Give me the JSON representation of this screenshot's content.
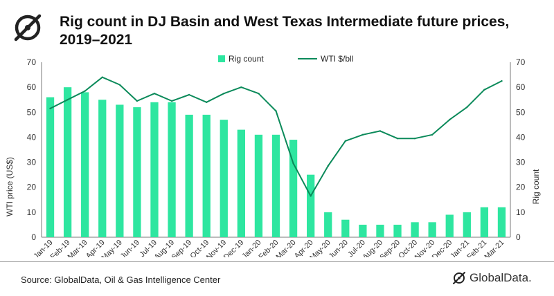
{
  "header": {
    "title": "Rig count in DJ Basin and West Texas Intermediate future prices, 2019–2021",
    "logo_icon": "globaldata-logo-icon"
  },
  "footer": {
    "source": "Source: GlobalData, Oil & Gas Intelligence Center",
    "brand": "GlobalData."
  },
  "colors": {
    "bar": "#2ee6a0",
    "line": "#0b8a5a",
    "axis": "#7a7a7a",
    "text": "#333333",
    "logo": "#222222"
  },
  "chart_data": {
    "type": "bar",
    "title": "Rig count in DJ Basin and West Texas Intermediate future prices, 2019–2021",
    "categories": [
      "Jan-19",
      "Feb-19",
      "Mar-19",
      "Apr-19",
      "May-19",
      "Jun-19",
      "Jul-19",
      "Aug-19",
      "Sep-19",
      "Oct-19",
      "Nov-19",
      "Dec-19",
      "Jan-20",
      "Feb-20",
      "Mar-20",
      "Apr-20",
      "May-20",
      "Jun-20",
      "Jul-20",
      "Aug-20",
      "Sep-20",
      "Oct-20",
      "Nov-20",
      "Dec-20",
      "Jan-21",
      "Feb-21",
      "Mar-21"
    ],
    "series": [
      {
        "name": "Rig count",
        "type": "bar",
        "axis": "right",
        "values": [
          56,
          60,
          58,
          55,
          53,
          52,
          54,
          54,
          49,
          49,
          47,
          43,
          41,
          41,
          39,
          25,
          10,
          7,
          5,
          5,
          5,
          6,
          6,
          9,
          10,
          12,
          12
        ]
      },
      {
        "name": "WTI $/bll",
        "type": "line",
        "axis": "left",
        "values": [
          51.5,
          55,
          58.5,
          64,
          61,
          54.5,
          57.5,
          54.5,
          57,
          54,
          57.5,
          60,
          57.5,
          50.5,
          29.5,
          16.5,
          28.5,
          38.5,
          41,
          42.5,
          39.5,
          39.5,
          41,
          47,
          52,
          59,
          62.5
        ]
      }
    ],
    "ylabel": "WTI price (US$)",
    "y2label": "Rig count",
    "ylim": [
      0,
      70
    ],
    "y2lim": [
      0,
      70
    ],
    "yticks": [
      0,
      10,
      20,
      30,
      40,
      50,
      60,
      70
    ],
    "y2ticks": [
      0,
      10,
      20,
      30,
      40,
      50,
      60,
      70
    ],
    "legend_position": "top-center",
    "grid": false
  }
}
